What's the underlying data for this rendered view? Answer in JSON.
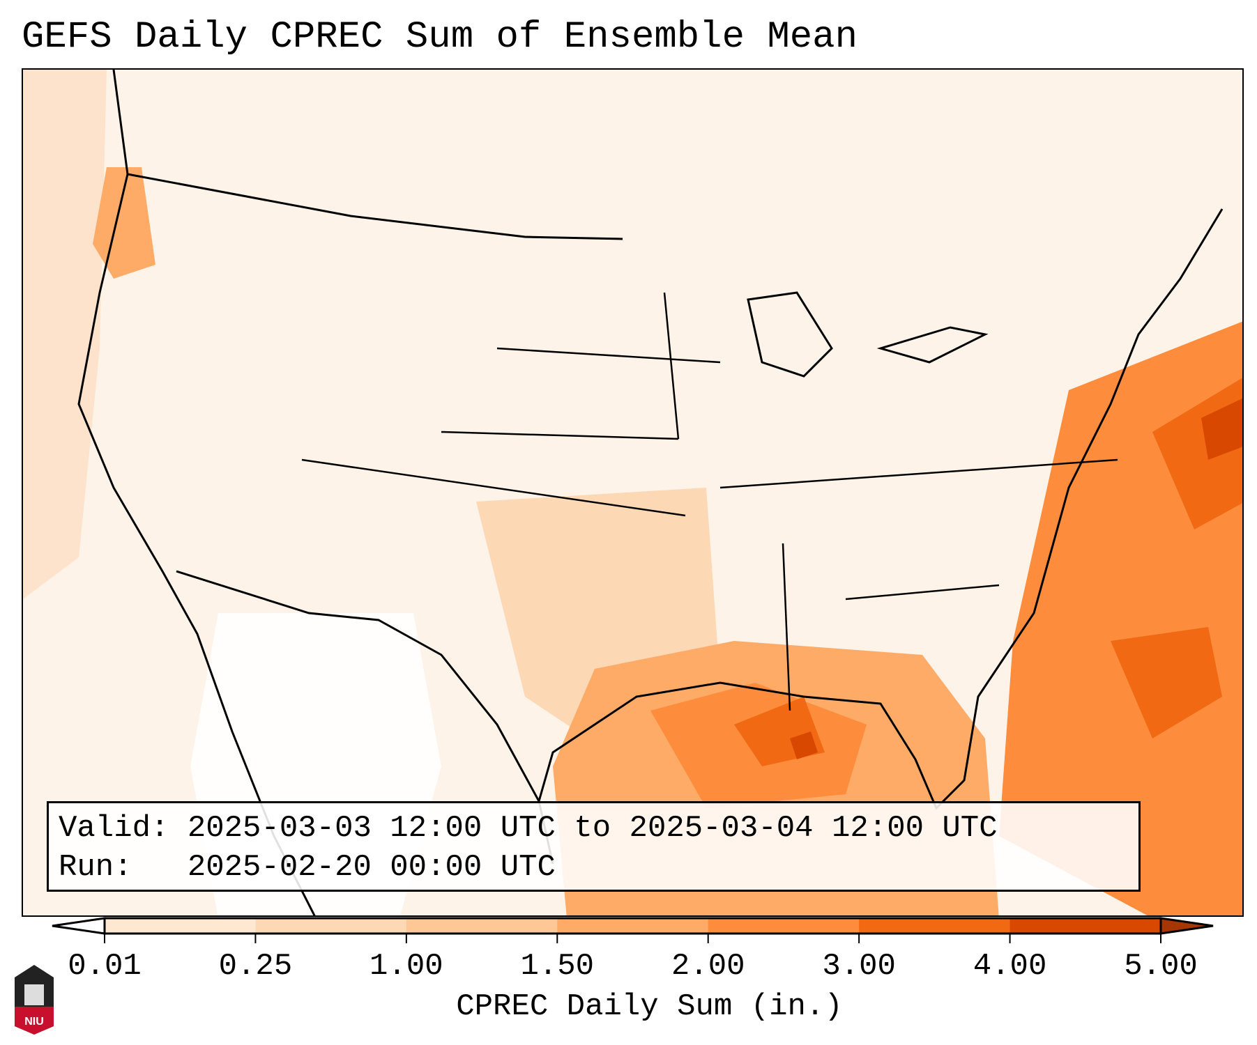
{
  "title": "GEFS Daily CPREC Sum of Ensemble Mean",
  "info": {
    "valid_line": "Valid: 2025-03-03 12:00 UTC to 2025-03-04 12:00 UTC",
    "run_line": "Run:   2025-02-20 00:00 UTC"
  },
  "colorbar": {
    "label": "CPREC Daily Sum (in.)",
    "ticks": [
      "0.01",
      "0.25",
      "1.00",
      "1.50",
      "2.00",
      "3.00",
      "4.00",
      "5.00"
    ],
    "colors": [
      "#fee8d2",
      "#fdd8b4",
      "#fdc895",
      "#fdab67",
      "#fd8d3c",
      "#f16913",
      "#d94801",
      "#a63603"
    ],
    "under_color": "#ffffff",
    "extend": "both"
  },
  "logo": {
    "text": "NIU"
  }
}
